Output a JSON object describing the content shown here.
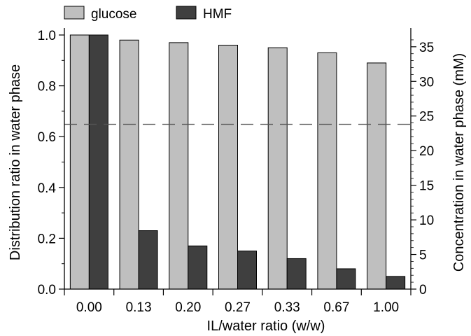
{
  "chart_data": {
    "type": "bar",
    "categories": [
      "0.00",
      "0.13",
      "0.20",
      "0.27",
      "0.33",
      "0.67",
      "1.00"
    ],
    "series": [
      {
        "name": "glucose",
        "color": "#bfbfbf",
        "values": [
          1.0,
          0.98,
          0.97,
          0.96,
          0.95,
          0.93,
          0.89
        ]
      },
      {
        "name": "HMF",
        "color": "#3f3f3f",
        "values": [
          1.0,
          0.23,
          0.17,
          0.15,
          0.12,
          0.08,
          0.05
        ]
      }
    ],
    "xlabel": "IL/water ratio (w/w)",
    "ylabel": "Distribution ratio in water phase",
    "y2label": "Concentration in water phase (mM)",
    "ylim": [
      0,
      1.0
    ],
    "yticks": [
      "0.0",
      "0.2",
      "0.4",
      "0.6",
      "0.8",
      "1.0"
    ],
    "y2lim": [
      0,
      37
    ],
    "y2ticks": [
      "0",
      "5",
      "10",
      "15",
      "20",
      "25",
      "30",
      "35"
    ],
    "reference_line": {
      "axis": "y2",
      "value": 23.8,
      "style": "dashed"
    },
    "legend": {
      "placement": "top-left"
    },
    "grid": false
  }
}
